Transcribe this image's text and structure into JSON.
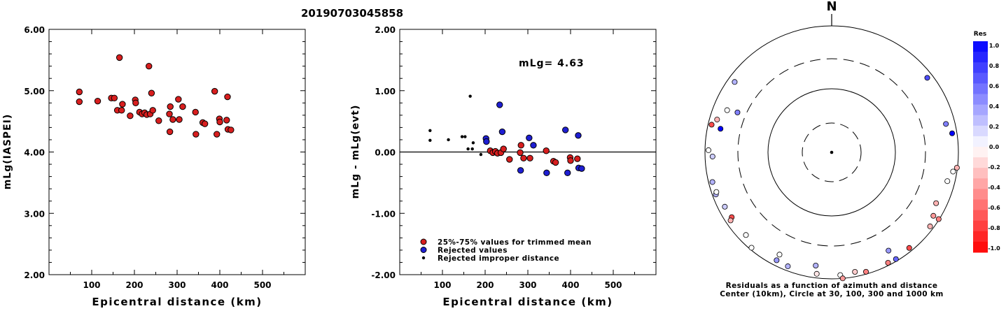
{
  "figure_title": "20190703045858",
  "chart_data": [
    {
      "type": "scatter",
      "title": "",
      "xlabel": "Epicentral distance (km)",
      "ylabel": "mLg(IASPEI)",
      "xlim": [
        0,
        600
      ],
      "ylim": [
        2.0,
        6.0
      ],
      "xticks": [
        100,
        200,
        300,
        400,
        500
      ],
      "yticks": [
        2.0,
        3.0,
        4.0,
        5.0,
        6.0
      ],
      "ytick_labels": [
        "2.00",
        "3.00",
        "4.00",
        "5.00",
        "6.00"
      ],
      "series": [
        {
          "color": "#d81e1e",
          "points": [
            [
              71,
              4.98
            ],
            [
              71,
              4.82
            ],
            [
              114,
              4.83
            ],
            [
              146,
              4.88
            ],
            [
              153,
              4.88
            ],
            [
              165,
              5.54
            ],
            [
              160,
              4.68
            ],
            [
              170,
              4.68
            ],
            [
              172,
              4.78
            ],
            [
              190,
              4.59
            ],
            [
              202,
              4.85
            ],
            [
              203,
              4.8
            ],
            [
              212,
              4.65
            ],
            [
              218,
              4.62
            ],
            [
              224,
              4.64
            ],
            [
              229,
              4.61
            ],
            [
              234,
              5.4
            ],
            [
              237,
              4.62
            ],
            [
              240,
              4.96
            ],
            [
              243,
              4.68
            ],
            [
              257,
              4.51
            ],
            [
              282,
              4.62
            ],
            [
              284,
              4.74
            ],
            [
              283,
              4.33
            ],
            [
              290,
              4.53
            ],
            [
              303,
              4.86
            ],
            [
              305,
              4.53
            ],
            [
              313,
              4.74
            ],
            [
              343,
              4.65
            ],
            [
              344,
              4.29
            ],
            [
              360,
              4.48
            ],
            [
              365,
              4.46
            ],
            [
              388,
              4.99
            ],
            [
              393,
              4.29
            ],
            [
              399,
              4.54
            ],
            [
              400,
              4.49
            ],
            [
              416,
              4.52
            ],
            [
              418,
              4.9
            ],
            [
              419,
              4.37
            ],
            [
              426,
              4.36
            ]
          ]
        }
      ]
    },
    {
      "type": "scatter",
      "title": "",
      "xlabel": "Epicentral distance (km)",
      "ylabel": "mLg - mLg(evt)",
      "annotation": "mLg= 4.63",
      "xlim": [
        0,
        600
      ],
      "ylim": [
        -2.0,
        2.0
      ],
      "xticks": [
        100,
        200,
        300,
        400,
        500
      ],
      "yticks": [
        -2.0,
        -1.0,
        0.0,
        1.0,
        2.0
      ],
      "ytick_labels": [
        "-2.00",
        "-1.00",
        "0.00",
        "1.00",
        "2.00"
      ],
      "reference_line": 0.0,
      "series": [
        {
          "name": "25%-75% values for trimmed mean",
          "color": "#d81e1e",
          "marker": "circle",
          "points": [
            [
              212,
              0.02
            ],
            [
              218,
              -0.01
            ],
            [
              224,
              0.01
            ],
            [
              229,
              -0.02
            ],
            [
              237,
              -0.01
            ],
            [
              243,
              0.05
            ],
            [
              257,
              -0.12
            ],
            [
              282,
              -0.01
            ],
            [
              284,
              0.11
            ],
            [
              290,
              -0.1
            ],
            [
              305,
              -0.1
            ],
            [
              343,
              0.02
            ],
            [
              360,
              -0.15
            ],
            [
              365,
              -0.17
            ],
            [
              399,
              -0.09
            ],
            [
              400,
              -0.14
            ],
            [
              416,
              -0.11
            ]
          ]
        },
        {
          "name": "Rejected values",
          "color": "#1e1ed2",
          "marker": "circle",
          "points": [
            [
              202,
              0.22
            ],
            [
              203,
              0.17
            ],
            [
              234,
              0.77
            ],
            [
              240,
              0.33
            ],
            [
              283,
              -0.3
            ],
            [
              303,
              0.23
            ],
            [
              313,
              0.11
            ],
            [
              344,
              -0.34
            ],
            [
              388,
              0.36
            ],
            [
              393,
              -0.34
            ],
            [
              418,
              0.27
            ],
            [
              419,
              -0.26
            ],
            [
              426,
              -0.27
            ]
          ]
        },
        {
          "name": "Rejected improper distance",
          "color": "#000000",
          "marker": "dot",
          "points": [
            [
              71,
              0.35
            ],
            [
              71,
              0.19
            ],
            [
              114,
              0.2
            ],
            [
              146,
              0.25
            ],
            [
              153,
              0.25
            ],
            [
              160,
              0.05
            ],
            [
              165,
              0.91
            ],
            [
              170,
              0.05
            ],
            [
              172,
              0.15
            ],
            [
              190,
              -0.04
            ]
          ]
        }
      ]
    }
  ],
  "polar": {
    "north_label": "N",
    "caption_line1": "Residuals as a function of azimuth and distance",
    "caption_line2": "Center (10km), Circle at 30, 100, 300 and 1000 km",
    "points": [
      {
        "az": 52,
        "dist": 820,
        "res": 0.7
      },
      {
        "az": 306,
        "dist": 780,
        "res": 0.3
      },
      {
        "az": 292,
        "dist": 600,
        "res": 0.0
      },
      {
        "az": 286,
        "dist": 760,
        "res": -0.3
      },
      {
        "az": 283,
        "dist": 880,
        "res": -0.7
      },
      {
        "az": 282,
        "dist": 620,
        "res": 1.0
      },
      {
        "az": 271,
        "dist": 880,
        "res": 0.0
      },
      {
        "az": 268,
        "dist": 760,
        "res": 0.2
      },
      {
        "az": 293,
        "dist": 410,
        "res": 0.5
      },
      {
        "az": 76,
        "dist": 720,
        "res": 0.5
      },
      {
        "az": 81,
        "dist": 840,
        "res": 1.0
      },
      {
        "az": 104,
        "dist": 760,
        "res": 0.0
      },
      {
        "az": 99,
        "dist": 870,
        "res": 0.0
      },
      {
        "az": 97,
        "dist": 980,
        "res": -0.3
      },
      {
        "az": 116,
        "dist": 680,
        "res": -0.3
      },
      {
        "az": 122,
        "dist": 780,
        "res": -0.4
      },
      {
        "az": 127,
        "dist": 880,
        "res": -0.3
      },
      {
        "az": 250,
        "dist": 880,
        "res": 0.3
      },
      {
        "az": 256,
        "dist": 870,
        "res": 0.3
      },
      {
        "az": 251,
        "dist": 840,
        "res": 0.0
      },
      {
        "az": 243,
        "dist": 780,
        "res": 0.2
      },
      {
        "az": 237,
        "dist": 760,
        "res": -0.7
      },
      {
        "az": 236,
        "dist": 840,
        "res": -0.3
      },
      {
        "az": 226,
        "dist": 760,
        "res": 0.0
      },
      {
        "az": 207,
        "dist": 820,
        "res": 0.4
      },
      {
        "az": 201,
        "dist": 850,
        "res": 0.3
      },
      {
        "az": 187,
        "dist": 860,
        "res": -0.1
      },
      {
        "az": 176,
        "dist": 880,
        "res": 0.0
      },
      {
        "az": 169,
        "dist": 840,
        "res": -0.2
      },
      {
        "az": 164,
        "dist": 920,
        "res": -0.5
      },
      {
        "az": 153,
        "dist": 910,
        "res": -0.5
      },
      {
        "az": 141,
        "dist": 880,
        "res": -0.7
      },
      {
        "az": 188,
        "dist": 640,
        "res": 0.3
      },
      {
        "az": 207,
        "dist": 650,
        "res": 0.0
      },
      {
        "az": 150,
        "dist": 620,
        "res": 0.4
      },
      {
        "az": 149,
        "dist": 930,
        "res": 0.6
      },
      {
        "az": 175,
        "dist": 1020,
        "res": -0.4
      },
      {
        "az": 122,
        "dist": 980,
        "res": -0.5
      },
      {
        "az": 220,
        "dist": 930,
        "res": 0.0
      }
    ]
  },
  "colorbar": {
    "title": "Res",
    "labels": [
      "1.0",
      "0.8",
      "0.6",
      "0.4",
      "0.2",
      "0.0",
      "-0.2",
      "-0.4",
      "-0.6",
      "-0.8",
      "-1.0"
    ],
    "levels": [
      1.0,
      0.8,
      0.6,
      0.4,
      0.2,
      0.0,
      -0.2,
      -0.4,
      -0.6,
      -0.8,
      -1.0
    ]
  }
}
